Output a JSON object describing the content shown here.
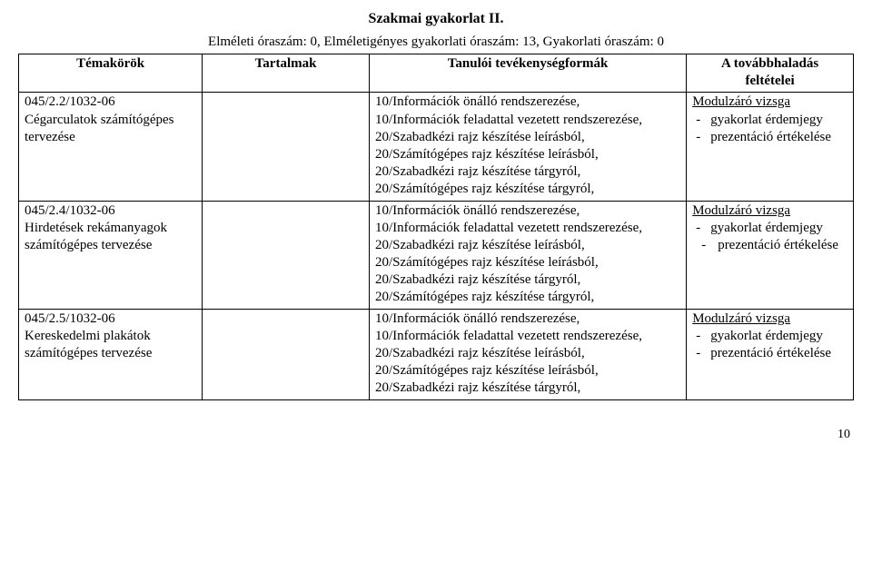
{
  "title": "Szakmai gyakorlat II.",
  "subtitle": "Elméleti óraszám: 0, Elméletigényes gyakorlati óraszám: 13, Gyakorlati óraszám: 0",
  "headers": {
    "col1": "Témakörök",
    "col2": "Tartalmak",
    "col3": "Tanulói tevékenységformák",
    "col4_line1": "A továbbhaladás",
    "col4_line2": "feltételei"
  },
  "rows": [
    {
      "topic": "045/2.2/1032-06\nCégarculatok számítógépes tervezése",
      "content": "",
      "activities": "10/Információk önálló rendszerezése,\n10/Információk feladattal vezetett rendszerezése,\n20/Szabadkézi rajz készítése leírásból,\n20/Számítógépes rajz készítése leírásból,\n20/Szabadkézi rajz készítése tárgyról,\n20/Számítógépes rajz készítése tárgyról,",
      "progress_title": "Modulzáró vizsga",
      "progress_items": [
        {
          "text": "gyakorlat érdemjegy",
          "indent": false
        },
        {
          "text": "prezentáció értékelése",
          "indent": false
        }
      ]
    },
    {
      "topic": "045/2.4/1032-06\nHirdetések rekámanyagok számítógépes tervezése",
      "content": "",
      "activities": "10/Információk önálló rendszerezése,\n10/Információk feladattal vezetett rendszerezése,\n20/Szabadkézi rajz készítése leírásból,\n20/Számítógépes rajz készítése leírásból,\n20/Szabadkézi rajz készítése tárgyról,\n20/Számítógépes rajz készítése tárgyról,",
      "progress_title": "Modulzáró vizsga",
      "progress_items": [
        {
          "text": "gyakorlat érdemjegy",
          "indent": false
        },
        {
          "text": "prezentáció értékelése",
          "indent": true
        }
      ]
    },
    {
      "topic": "045/2.5/1032-06\nKereskedelmi plakátok számítógépes tervezése",
      "content": "",
      "activities": "10/Információk önálló rendszerezése,\n10/Információk feladattal vezetett rendszerezése,\n20/Szabadkézi rajz készítése leírásból,\n20/Számítógépes rajz készítése leírásból,\n20/Szabadkézi rajz készítése tárgyról,",
      "progress_title": "Modulzáró vizsga",
      "progress_items": [
        {
          "text": "gyakorlat érdemjegy",
          "indent": false
        },
        {
          "text": "prezentáció értékelése",
          "indent": false
        }
      ]
    }
  ],
  "page_number": "10"
}
